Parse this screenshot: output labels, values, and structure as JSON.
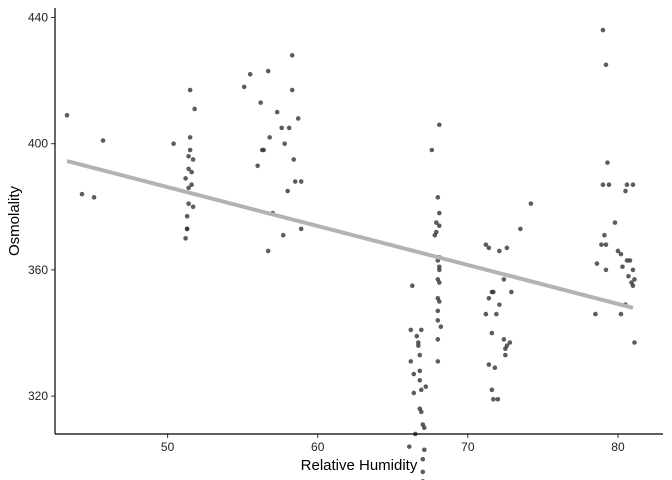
{
  "chart_data": {
    "type": "scatter",
    "title": "",
    "xlabel": "Relative Humidity",
    "ylabel": "Osmolality",
    "xlim": [
      42.5,
      83.0
    ],
    "ylim": [
      308.0,
      443.0
    ],
    "xticks": [
      50,
      60,
      70,
      80
    ],
    "yticks": [
      320,
      360,
      400,
      440
    ],
    "grid": false,
    "legend": "none",
    "point_color": "#333333",
    "point_opacity": 0.8,
    "trend_color": "#b3b3b3",
    "trend_line": {
      "x": [
        43.3,
        81.0
      ],
      "y": [
        394.5,
        348.0
      ]
    },
    "points": [
      [
        43.3,
        409
      ],
      [
        44.3,
        384
      ],
      [
        45.1,
        383
      ],
      [
        45.7,
        401
      ],
      [
        50.4,
        400
      ],
      [
        51.2,
        389
      ],
      [
        51.2,
        370
      ],
      [
        51.3,
        373
      ],
      [
        51.3,
        373
      ],
      [
        51.3,
        377
      ],
      [
        51.4,
        381
      ],
      [
        51.4,
        386
      ],
      [
        51.4,
        392
      ],
      [
        51.4,
        396
      ],
      [
        51.5,
        398
      ],
      [
        51.5,
        402
      ],
      [
        51.5,
        417
      ],
      [
        51.6,
        387
      ],
      [
        51.6,
        391
      ],
      [
        51.7,
        395
      ],
      [
        51.7,
        380
      ],
      [
        51.8,
        411
      ],
      [
        55.1,
        418
      ],
      [
        55.5,
        422
      ],
      [
        56.0,
        393
      ],
      [
        56.2,
        413
      ],
      [
        56.3,
        398
      ],
      [
        56.4,
        398
      ],
      [
        56.7,
        423
      ],
      [
        56.7,
        366
      ],
      [
        56.8,
        402
      ],
      [
        57.0,
        378
      ],
      [
        57.3,
        410
      ],
      [
        57.6,
        405
      ],
      [
        57.7,
        371
      ],
      [
        57.8,
        400
      ],
      [
        58.0,
        385
      ],
      [
        58.1,
        405
      ],
      [
        58.3,
        428
      ],
      [
        58.3,
        417
      ],
      [
        58.4,
        395
      ],
      [
        58.5,
        388
      ],
      [
        58.7,
        408
      ],
      [
        58.9,
        388
      ],
      [
        58.9,
        373
      ],
      [
        66.1,
        304
      ],
      [
        66.2,
        341
      ],
      [
        66.2,
        331
      ],
      [
        66.3,
        355
      ],
      [
        66.4,
        321
      ],
      [
        66.4,
        327
      ],
      [
        66.5,
        308
      ],
      [
        66.6,
        339
      ],
      [
        66.7,
        336
      ],
      [
        66.7,
        337
      ],
      [
        66.8,
        328
      ],
      [
        66.8,
        333
      ],
      [
        66.8,
        325
      ],
      [
        66.8,
        316
      ],
      [
        66.9,
        341
      ],
      [
        66.9,
        315
      ],
      [
        66.9,
        322
      ],
      [
        67.0,
        311
      ],
      [
        67.0,
        300
      ],
      [
        67.0,
        296
      ],
      [
        67.0,
        293
      ],
      [
        67.1,
        310
      ],
      [
        67.1,
        303
      ],
      [
        67.2,
        323
      ],
      [
        67.6,
        398
      ],
      [
        67.8,
        371
      ],
      [
        67.9,
        372
      ],
      [
        67.9,
        375
      ],
      [
        68.0,
        363
      ],
      [
        68.0,
        357
      ],
      [
        68.0,
        351
      ],
      [
        68.0,
        347
      ],
      [
        68.0,
        344
      ],
      [
        68.0,
        338
      ],
      [
        68.0,
        331
      ],
      [
        68.0,
        383
      ],
      [
        68.1,
        374
      ],
      [
        68.1,
        378
      ],
      [
        68.1,
        364
      ],
      [
        68.1,
        360
      ],
      [
        68.1,
        356
      ],
      [
        68.1,
        350
      ],
      [
        68.1,
        361
      ],
      [
        68.1,
        406
      ],
      [
        68.2,
        342
      ],
      [
        71.2,
        368
      ],
      [
        71.2,
        346
      ],
      [
        71.4,
        367
      ],
      [
        71.4,
        351
      ],
      [
        71.4,
        330
      ],
      [
        71.6,
        353
      ],
      [
        71.6,
        340
      ],
      [
        71.6,
        322
      ],
      [
        71.7,
        319
      ],
      [
        71.7,
        353
      ],
      [
        71.8,
        329
      ],
      [
        71.9,
        346
      ],
      [
        72.0,
        319
      ],
      [
        72.1,
        366
      ],
      [
        72.1,
        349
      ],
      [
        72.4,
        357
      ],
      [
        72.4,
        338
      ],
      [
        72.5,
        333
      ],
      [
        72.5,
        335
      ],
      [
        72.6,
        367
      ],
      [
        72.6,
        336
      ],
      [
        72.8,
        337
      ],
      [
        72.9,
        353
      ],
      [
        73.5,
        373
      ],
      [
        74.2,
        381
      ],
      [
        78.5,
        346
      ],
      [
        78.6,
        362
      ],
      [
        78.9,
        368
      ],
      [
        79.0,
        436
      ],
      [
        79.0,
        387
      ],
      [
        79.1,
        371
      ],
      [
        79.2,
        360
      ],
      [
        79.2,
        425
      ],
      [
        79.2,
        368
      ],
      [
        79.3,
        394
      ],
      [
        79.4,
        387
      ],
      [
        79.8,
        375
      ],
      [
        80.0,
        366
      ],
      [
        80.2,
        365
      ],
      [
        80.2,
        346
      ],
      [
        80.3,
        361
      ],
      [
        80.5,
        385
      ],
      [
        80.5,
        349
      ],
      [
        80.6,
        363
      ],
      [
        80.6,
        387
      ],
      [
        80.7,
        358
      ],
      [
        80.8,
        363
      ],
      [
        80.9,
        356
      ],
      [
        81.0,
        387
      ],
      [
        81.0,
        360
      ],
      [
        81.1,
        337
      ],
      [
        81.1,
        357
      ],
      [
        81.0,
        355
      ]
    ]
  }
}
